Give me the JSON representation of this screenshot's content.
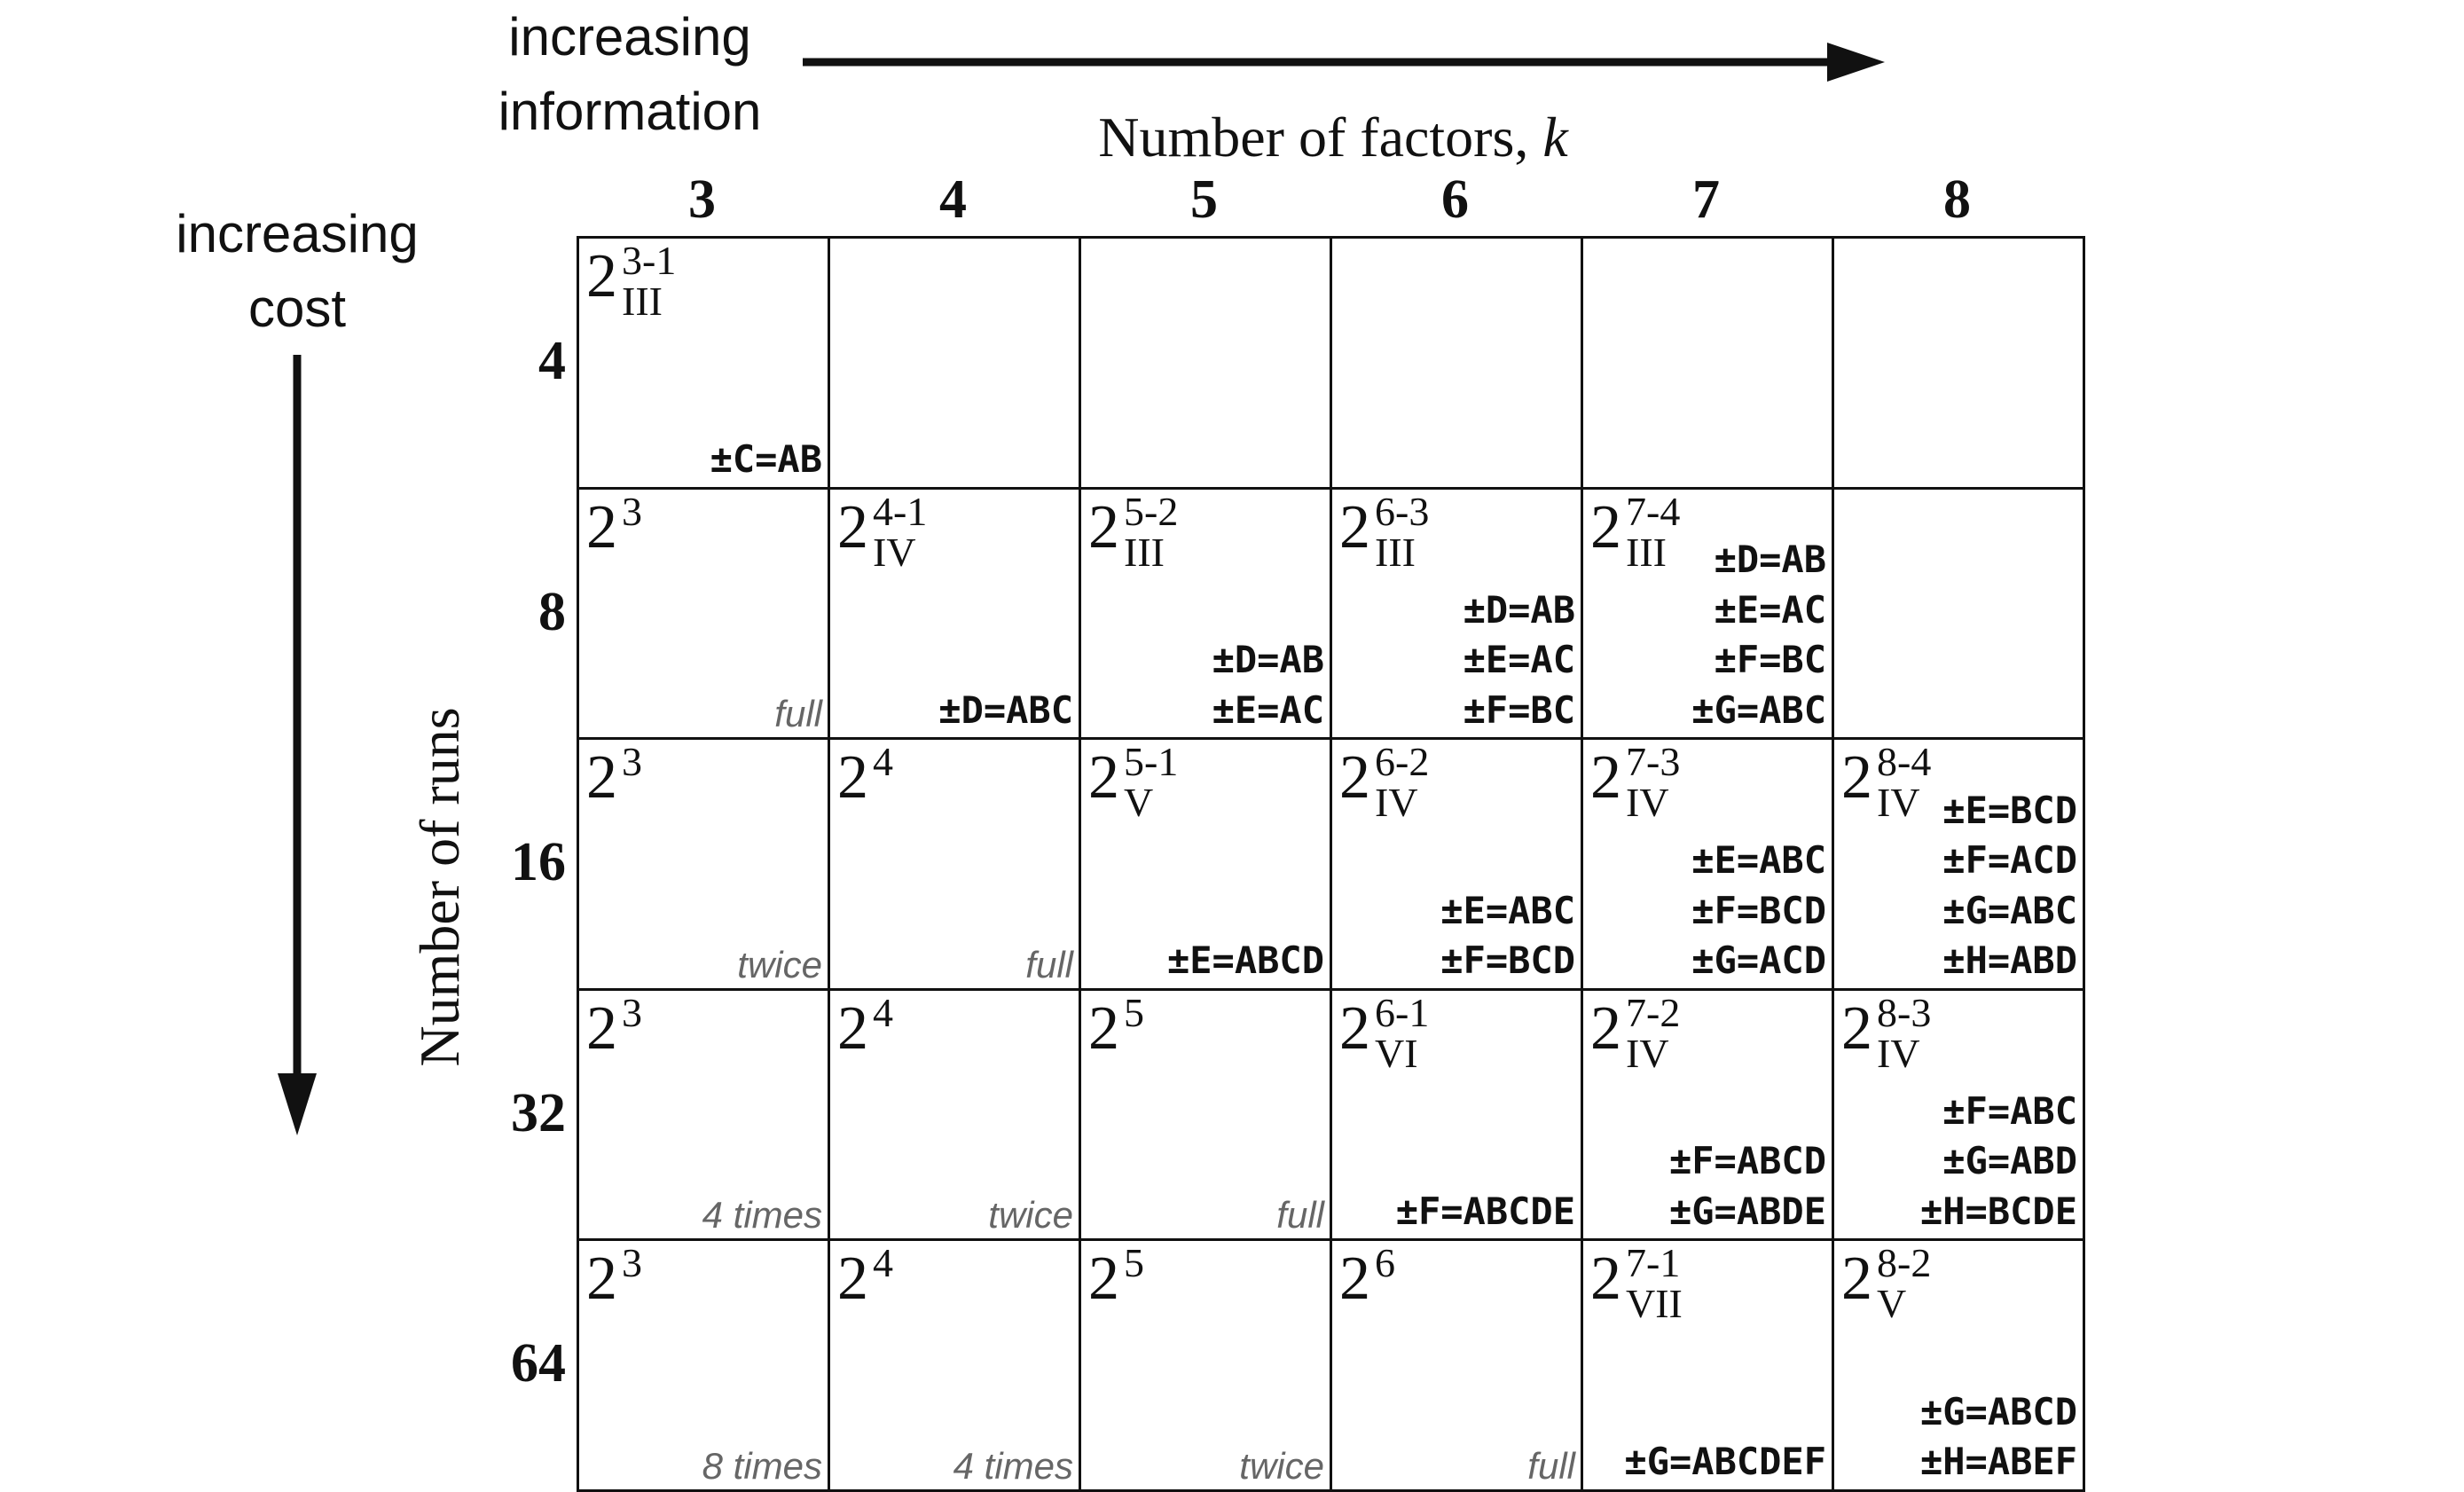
{
  "axes": {
    "information_label": "increasing\ninformation",
    "cost_label": "increasing\ncost",
    "factors_title": "Number of factors, ",
    "factors_symbol": "k",
    "runs_title": "Number of runs"
  },
  "columns": [
    "3",
    "4",
    "5",
    "6",
    "7",
    "8"
  ],
  "rows": [
    "4",
    "8",
    "16",
    "32",
    "64"
  ],
  "cells": [
    [
      {
        "sup": "3-1",
        "sub": "III",
        "note": "",
        "aliases": [
          "±C=AB"
        ]
      },
      null,
      null,
      null,
      null,
      null
    ],
    [
      {
        "sup": "3",
        "sub": "",
        "note": "full",
        "aliases": []
      },
      {
        "sup": "4-1",
        "sub": "IV",
        "note": "",
        "aliases": [
          "±D=ABC"
        ]
      },
      {
        "sup": "5-2",
        "sub": "III",
        "note": "",
        "aliases": [
          "±D=AB",
          "±E=AC"
        ]
      },
      {
        "sup": "6-3",
        "sub": "III",
        "note": "",
        "aliases": [
          "±D=AB",
          "±E=AC",
          "±F=BC"
        ]
      },
      {
        "sup": "7-4",
        "sub": "III",
        "note": "",
        "aliases": [
          "±D=AB",
          "±E=AC",
          "±F=BC",
          "±G=ABC"
        ]
      },
      null
    ],
    [
      {
        "sup": "3",
        "sub": "",
        "note": "twice",
        "aliases": []
      },
      {
        "sup": "4",
        "sub": "",
        "note": "full",
        "aliases": []
      },
      {
        "sup": "5-1",
        "sub": "V",
        "note": "",
        "aliases": [
          "±E=ABCD"
        ]
      },
      {
        "sup": "6-2",
        "sub": "IV",
        "note": "",
        "aliases": [
          "±E=ABC",
          "±F=BCD"
        ]
      },
      {
        "sup": "7-3",
        "sub": "IV",
        "note": "",
        "aliases": [
          "±E=ABC",
          "±F=BCD",
          "±G=ACD"
        ]
      },
      {
        "sup": "8-4",
        "sub": "IV",
        "note": "",
        "aliases": [
          "±E=BCD",
          "±F=ACD",
          "±G=ABC",
          "±H=ABD"
        ]
      }
    ],
    [
      {
        "sup": "3",
        "sub": "",
        "note": "4 times",
        "aliases": []
      },
      {
        "sup": "4",
        "sub": "",
        "note": "twice",
        "aliases": []
      },
      {
        "sup": "5",
        "sub": "",
        "note": "full",
        "aliases": []
      },
      {
        "sup": "6-1",
        "sub": "VI",
        "note": "",
        "aliases": [
          "±F=ABCDE"
        ]
      },
      {
        "sup": "7-2",
        "sub": "IV",
        "note": "",
        "aliases": [
          "±F=ABCD",
          "±G=ABDE"
        ]
      },
      {
        "sup": "8-3",
        "sub": "IV",
        "note": "",
        "aliases": [
          "±F=ABC",
          "±G=ABD",
          "±H=BCDE"
        ]
      }
    ],
    [
      {
        "sup": "3",
        "sub": "",
        "note": "8 times",
        "aliases": []
      },
      {
        "sup": "4",
        "sub": "",
        "note": "4 times",
        "aliases": []
      },
      {
        "sup": "5",
        "sub": "",
        "note": "twice",
        "aliases": []
      },
      {
        "sup": "6",
        "sub": "",
        "note": "full",
        "aliases": []
      },
      {
        "sup": "7-1",
        "sub": "VII",
        "note": "",
        "aliases": [
          "±G=ABCDEF"
        ]
      },
      {
        "sup": "8-2",
        "sub": "V",
        "note": "",
        "aliases": [
          "±G=ABCD",
          "±H=ABEF"
        ]
      }
    ]
  ],
  "design_base": "2",
  "colors": {
    "line": "#111111",
    "note": "#666666"
  }
}
